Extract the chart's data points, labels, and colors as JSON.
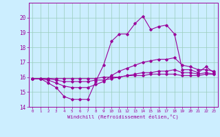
{
  "xlabel": "Windchill (Refroidissement éolien,°C)",
  "x": [
    0,
    1,
    2,
    3,
    4,
    5,
    6,
    7,
    8,
    9,
    10,
    11,
    12,
    13,
    14,
    15,
    16,
    17,
    18,
    19,
    20,
    21,
    22,
    23
  ],
  "line1": [
    15.9,
    15.9,
    15.6,
    15.3,
    14.7,
    14.5,
    14.5,
    14.5,
    15.7,
    16.8,
    18.4,
    18.9,
    18.9,
    19.6,
    20.1,
    19.2,
    19.4,
    19.5,
    18.9,
    16.5,
    16.5,
    16.3,
    16.7,
    16.3
  ],
  "line2": [
    15.9,
    15.9,
    15.8,
    15.6,
    15.4,
    15.3,
    15.3,
    15.3,
    15.5,
    15.7,
    16.1,
    16.4,
    16.6,
    16.8,
    17.0,
    17.1,
    17.2,
    17.2,
    17.3,
    16.8,
    16.7,
    16.5,
    16.5,
    16.4
  ],
  "line3": [
    15.9,
    15.9,
    15.9,
    15.8,
    15.7,
    15.7,
    15.7,
    15.7,
    15.8,
    15.8,
    15.9,
    16.0,
    16.1,
    16.2,
    16.3,
    16.3,
    16.4,
    16.4,
    16.5,
    16.3,
    16.3,
    16.2,
    16.3,
    16.2
  ],
  "line4": [
    15.9,
    15.9,
    15.9,
    15.9,
    15.9,
    15.9,
    15.9,
    15.9,
    15.9,
    16.0,
    16.0,
    16.0,
    16.1,
    16.1,
    16.1,
    16.2,
    16.2,
    16.2,
    16.2,
    16.1,
    16.1,
    16.1,
    16.2,
    16.2
  ],
  "color": "#990099",
  "bg_color": "#cceeff",
  "grid_color": "#99ccbb",
  "ylim": [
    14,
    21
  ],
  "yticks": [
    14,
    15,
    16,
    17,
    18,
    19,
    20
  ],
  "xticks": [
    0,
    1,
    2,
    3,
    4,
    5,
    6,
    7,
    8,
    9,
    10,
    11,
    12,
    13,
    14,
    15,
    16,
    17,
    18,
    19,
    20,
    21,
    22,
    23
  ]
}
